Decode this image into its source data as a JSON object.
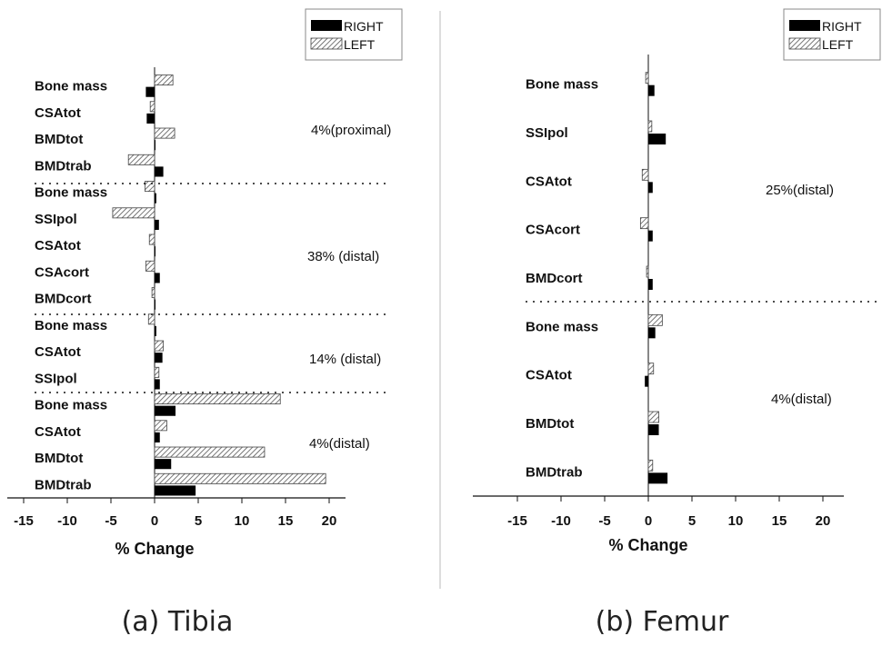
{
  "chart_data": [
    {
      "type": "bar",
      "orientation": "horizontal",
      "caption": "(a) Tibia",
      "xlabel": "% Change",
      "xlim": [
        -15,
        20
      ],
      "xticks": [
        -15,
        -10,
        -5,
        0,
        5,
        10,
        15,
        20
      ],
      "legend": {
        "placement": "top-right",
        "entries": [
          {
            "name": "RIGHT",
            "color": "#000000"
          },
          {
            "name": "LEFT",
            "pattern": "hatched"
          }
        ]
      },
      "categories": [
        "Bone mass",
        "CSAtot",
        "BMDtot",
        "BMDtrab",
        "Bone mass",
        "SSIpol",
        "CSAtot",
        "CSAcort",
        "BMDcort",
        "Bone mass",
        "CSAtot",
        "SSIpol",
        "Bone mass",
        "CSAtot",
        "BMDtot",
        "BMDtrab"
      ],
      "series": [
        {
          "name": "RIGHT",
          "values": [
            -1.0,
            -0.9,
            0.0,
            1.0,
            0.2,
            0.5,
            0.1,
            0.6,
            0.0,
            0.2,
            0.9,
            0.6,
            2.4,
            0.6,
            1.9,
            4.7
          ]
        },
        {
          "name": "LEFT",
          "values": [
            2.1,
            -0.5,
            2.3,
            -3.0,
            -1.1,
            -4.8,
            -0.6,
            -1.0,
            -0.3,
            -0.7,
            1.0,
            0.5,
            14.4,
            1.4,
            12.6,
            19.6
          ]
        }
      ],
      "groups": [
        {
          "label": "4%(proximal)",
          "start": 0,
          "end": 4
        },
        {
          "label": "38% (distal)",
          "start": 4,
          "end": 9
        },
        {
          "label": "14% (distal)",
          "start": 9,
          "end": 12
        },
        {
          "label": "4%(distal)",
          "start": 12,
          "end": 16
        }
      ]
    },
    {
      "type": "bar",
      "orientation": "horizontal",
      "caption": "(b) Femur",
      "xlabel": "% Change",
      "xlim": [
        -15,
        20
      ],
      "xticks": [
        -15,
        -10,
        -5,
        0,
        5,
        10,
        15,
        20
      ],
      "legend": {
        "placement": "top-right",
        "entries": [
          {
            "name": "RIGHT",
            "color": "#000000"
          },
          {
            "name": "LEFT",
            "pattern": "hatched"
          }
        ]
      },
      "categories": [
        "Bone mass",
        "SSIpol",
        "CSAtot",
        "CSAcort",
        "BMDcort",
        "Bone mass",
        "CSAtot",
        "BMDtot",
        "BMDtrab"
      ],
      "series": [
        {
          "name": "RIGHT",
          "values": [
            0.7,
            2.0,
            0.5,
            0.5,
            0.5,
            0.8,
            -0.4,
            1.2,
            2.2
          ]
        },
        {
          "name": "LEFT",
          "values": [
            -0.3,
            0.4,
            -0.7,
            -0.9,
            -0.2,
            1.6,
            0.6,
            1.2,
            0.5
          ]
        }
      ],
      "groups": [
        {
          "label": "25%(distal)",
          "start": 0,
          "end": 5
        },
        {
          "label": "4%(distal)",
          "start": 5,
          "end": 9
        }
      ]
    }
  ]
}
